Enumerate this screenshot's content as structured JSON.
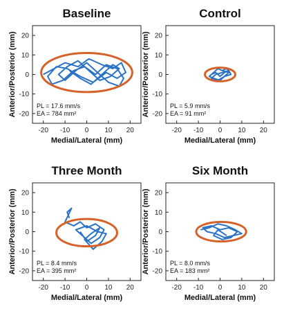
{
  "chart_data": [
    {
      "type": "line",
      "title": "Baseline",
      "xlabel": "Medial/Lateral (mm)",
      "ylabel": "Anterior/Posterior (mm)",
      "xlim": [
        -25,
        25
      ],
      "ylim": [
        -25,
        25
      ],
      "xticks": [
        "-20",
        "-10",
        "0",
        "10",
        "20"
      ],
      "yticks": [
        "20",
        "10",
        "0",
        "-10",
        "-20"
      ],
      "grid": false,
      "annotations": [
        "PL = 17.6 mm/s",
        "EA = 784 mm²"
      ],
      "ellipse": {
        "cx": 0,
        "cy": 1,
        "rx": 21,
        "ry": 10
      },
      "series": [
        {
          "x": [
            -20,
            -15,
            -10,
            -4,
            1,
            7,
            12,
            16,
            18,
            14,
            9,
            3,
            -3,
            -9,
            -14,
            -18,
            -16,
            -11,
            -6,
            -1,
            4,
            9,
            14,
            17,
            15,
            10,
            5,
            0,
            -5,
            -10,
            -13,
            -9,
            -4,
            1,
            6,
            11,
            15,
            12,
            7,
            2,
            -3,
            -8
          ],
          "y": [
            0,
            3,
            6,
            4,
            8,
            5,
            3,
            6,
            1,
            -2,
            1,
            -4,
            -1,
            3,
            4,
            -1,
            -5,
            -3,
            2,
            4,
            0,
            5,
            3,
            -2,
            -6,
            -4,
            1,
            6,
            2,
            -3,
            0,
            4,
            7,
            2,
            -3,
            -1,
            3,
            5,
            0,
            -5,
            -2,
            2
          ]
        }
      ]
    },
    {
      "type": "line",
      "title": "Control",
      "xlabel": "Medial/Lateral (mm)",
      "ylabel": "Anterior/Posterior (mm)",
      "xlim": [
        -25,
        25
      ],
      "ylim": [
        -25,
        25
      ],
      "xticks": [
        "-20",
        "-10",
        "0",
        "10",
        "20"
      ],
      "yticks": [
        "20",
        "10",
        "0",
        "-10",
        "-20"
      ],
      "grid": false,
      "annotations": [
        "PL = 5.9 mm/s",
        "EA = 91 mm²"
      ],
      "ellipse": {
        "cx": 0,
        "cy": 0,
        "rx": 7,
        "ry": 3.5
      },
      "series": [
        {
          "x": [
            -4,
            -2,
            0,
            2,
            4,
            3,
            1,
            -1,
            -3,
            -5,
            -3,
            0,
            2,
            5,
            4,
            1,
            -2,
            -4,
            -1,
            2,
            4,
            1
          ],
          "y": [
            0,
            1,
            -1,
            1,
            2,
            3,
            2,
            3,
            1,
            -1,
            -2,
            -3,
            -1,
            0,
            2,
            1,
            0,
            -2,
            -3,
            -1,
            1,
            2
          ]
        }
      ]
    },
    {
      "type": "line",
      "title": "Three Month",
      "xlabel": "Medial/Lateral (mm)",
      "ylabel": "Anterior/Posterior (mm)",
      "xlim": [
        -25,
        25
      ],
      "ylim": [
        -25,
        25
      ],
      "xticks": [
        "-20",
        "-10",
        "0",
        "10",
        "20"
      ],
      "yticks": [
        "20",
        "10",
        "0",
        "-10",
        "-20"
      ],
      "grid": false,
      "annotations": [
        "PL = 8.4 mm/s",
        "EA = 395 mm²"
      ],
      "ellipse": {
        "cx": 0,
        "cy": -0.5,
        "rx": 14,
        "ry": 7
      },
      "series": [
        {
          "x": [
            -8,
            -9,
            -7,
            -10,
            -6,
            -3,
            0,
            4,
            8,
            6,
            2,
            -2,
            -5,
            0,
            5,
            9,
            7,
            3,
            -1,
            2,
            6,
            4,
            0,
            -3
          ],
          "y": [
            7,
            10,
            12,
            5,
            3,
            5,
            2,
            4,
            1,
            -3,
            -6,
            -2,
            1,
            3,
            0,
            -1,
            -5,
            -9,
            -4,
            -1,
            2,
            -2,
            -5,
            0
          ]
        }
      ]
    },
    {
      "type": "line",
      "title": "Six Month",
      "xlabel": "Medial/Lateral (mm)",
      "ylabel": "Anterior/Posterior (mm)",
      "xlim": [
        -25,
        25
      ],
      "ylim": [
        -25,
        25
      ],
      "xticks": [
        "-20",
        "-10",
        "0",
        "10",
        "20"
      ],
      "yticks": [
        "20",
        "10",
        "0",
        "-10",
        "-20"
      ],
      "grid": false,
      "annotations": [
        "PL = 8.0 mm/s",
        "EA = 183 mm²"
      ],
      "ellipse": {
        "cx": 0.5,
        "cy": 0,
        "rx": 11.5,
        "ry": 5
      },
      "series": [
        {
          "x": [
            -9,
            -5,
            -1,
            3,
            7,
            10,
            6,
            2,
            -2,
            -6,
            -8,
            -4,
            0,
            4,
            8,
            5,
            1,
            -3,
            -1,
            3
          ],
          "y": [
            1,
            2,
            4,
            3,
            1,
            -1,
            -2,
            -3,
            -1,
            0,
            2,
            3,
            1,
            2,
            0,
            -3,
            -4,
            -2,
            1,
            -2
          ]
        }
      ]
    }
  ],
  "colors": {
    "trace": "#2a72c6",
    "ellipse": "#d5622a",
    "axis": "#222222"
  }
}
